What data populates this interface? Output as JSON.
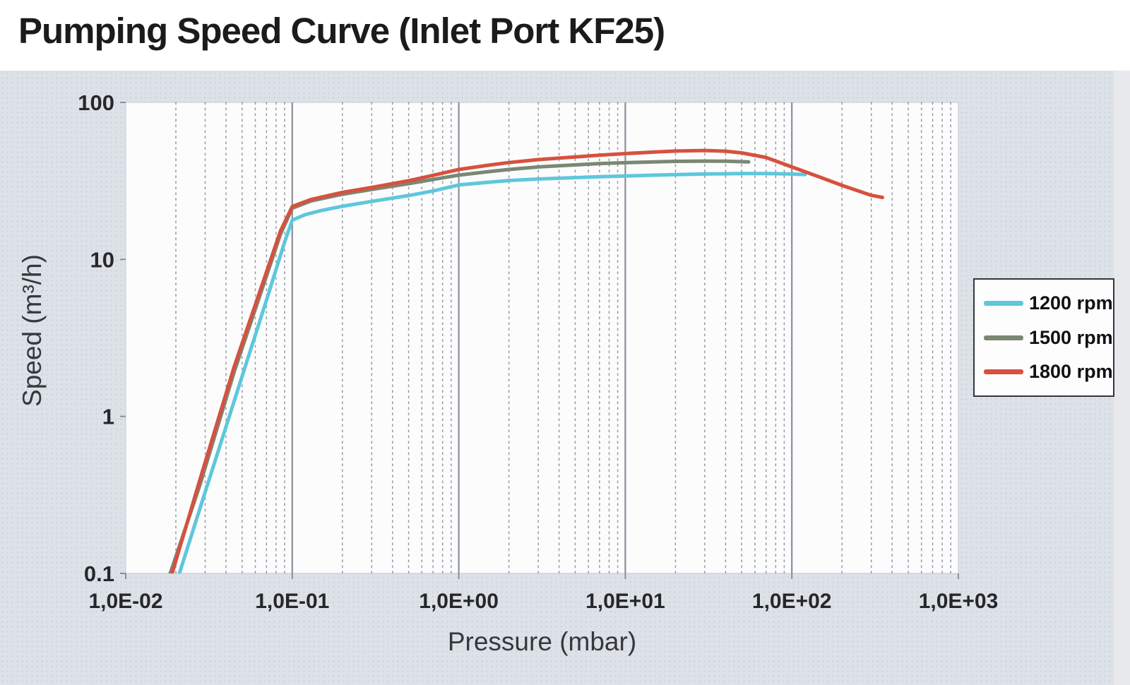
{
  "title": "Pumping Speed Curve (Inlet Port KF25)",
  "colors": {
    "panel_bg": "#dde1e8",
    "panel_dots": "#c9cdd6",
    "right_strip": "#e8e9ec",
    "plot_bg": "#fcfcfd",
    "plot_border": "#c3c7cf",
    "minor_grid": "#979da7",
    "major_grid": "#8b9099",
    "tick_text": "#26272b",
    "axis_title_text": "#36383c",
    "title_text": "#1b1b1d",
    "legend_border": "#34353a",
    "series_1200": "#5ec7dc",
    "series_1500": "#7a8774",
    "series_1800": "#d6513f"
  },
  "chart_data": {
    "type": "line",
    "title": "Pumping Speed Curve (Inlet Port KF25)",
    "xlabel": "Pressure (mbar)",
    "ylabel": "Speed (m³/h)",
    "xscale": "log",
    "yscale": "log",
    "xlim": [
      0.01,
      1000
    ],
    "ylim": [
      0.1,
      100
    ],
    "grid": "vertical only: dashed minor log lines, solid major decade lines",
    "legend_position": "right",
    "x_ticks": {
      "values": [
        0.01,
        0.1,
        1,
        10,
        100,
        1000
      ],
      "labels": [
        "1,0E-02",
        "1,0E-01",
        "1,0E+00",
        "1,0E+01",
        "1,0E+02",
        "1,0E+03"
      ]
    },
    "y_ticks": {
      "values": [
        100,
        10,
        1,
        0.1
      ],
      "labels": [
        "100",
        "10",
        "1",
        "0.1"
      ]
    },
    "series": [
      {
        "name": "1200 rpm",
        "color": "#5ec7dc",
        "points": [
          [
            0.021,
            0.1
          ],
          [
            0.03,
            0.33
          ],
          [
            0.05,
            1.8
          ],
          [
            0.07,
            5.5
          ],
          [
            0.09,
            12.9
          ],
          [
            0.1,
            17.8
          ],
          [
            0.12,
            19.3
          ],
          [
            0.15,
            20.5
          ],
          [
            0.2,
            21.8
          ],
          [
            0.3,
            23.4
          ],
          [
            0.5,
            25.5
          ],
          [
            0.7,
            27.3
          ],
          [
            1,
            29.8
          ],
          [
            1.5,
            31
          ],
          [
            2,
            31.8
          ],
          [
            3,
            32.5
          ],
          [
            5,
            33.2
          ],
          [
            7,
            33.6
          ],
          [
            10,
            34
          ],
          [
            15,
            34.4
          ],
          [
            20,
            34.7
          ],
          [
            30,
            35
          ],
          [
            50,
            35.2
          ],
          [
            70,
            35.2
          ],
          [
            100,
            35
          ],
          [
            120,
            34.7
          ]
        ]
      },
      {
        "name": "1500 rpm",
        "color": "#7a8774",
        "points": [
          [
            0.0185,
            0.1
          ],
          [
            0.028,
            0.37
          ],
          [
            0.045,
            1.95
          ],
          [
            0.065,
            6.2
          ],
          [
            0.085,
            14.5
          ],
          [
            0.1,
            21.2
          ],
          [
            0.13,
            23.6
          ],
          [
            0.2,
            26
          ],
          [
            0.3,
            27.9
          ],
          [
            0.5,
            30.4
          ],
          [
            0.7,
            32.3
          ],
          [
            1,
            34.4
          ],
          [
            1.5,
            36.2
          ],
          [
            2,
            37.4
          ],
          [
            3,
            38.8
          ],
          [
            5,
            40
          ],
          [
            7,
            40.8
          ],
          [
            10,
            41.3
          ],
          [
            15,
            41.8
          ],
          [
            20,
            42.1
          ],
          [
            30,
            42.3
          ],
          [
            40,
            42.2
          ],
          [
            55,
            41.8
          ]
        ]
      },
      {
        "name": "1800 rpm",
        "color": "#d6513f",
        "points": [
          [
            0.019,
            0.1
          ],
          [
            0.028,
            0.4
          ],
          [
            0.045,
            2.1
          ],
          [
            0.065,
            6.6
          ],
          [
            0.085,
            15.2
          ],
          [
            0.1,
            21.7
          ],
          [
            0.13,
            24.1
          ],
          [
            0.2,
            26.7
          ],
          [
            0.3,
            28.7
          ],
          [
            0.5,
            31.7
          ],
          [
            0.7,
            34.3
          ],
          [
            1,
            37.4
          ],
          [
            1.5,
            39.8
          ],
          [
            2,
            41.4
          ],
          [
            3,
            43.2
          ],
          [
            5,
            44.9
          ],
          [
            7,
            46.1
          ],
          [
            10,
            47.2
          ],
          [
            15,
            48.3
          ],
          [
            20,
            49
          ],
          [
            30,
            49.4
          ],
          [
            40,
            48.9
          ],
          [
            50,
            47.7
          ],
          [
            70,
            44.6
          ],
          [
            100,
            38.8
          ],
          [
            150,
            33.2
          ],
          [
            200,
            29.6
          ],
          [
            300,
            25.6
          ],
          [
            350,
            24.8
          ]
        ]
      }
    ]
  }
}
